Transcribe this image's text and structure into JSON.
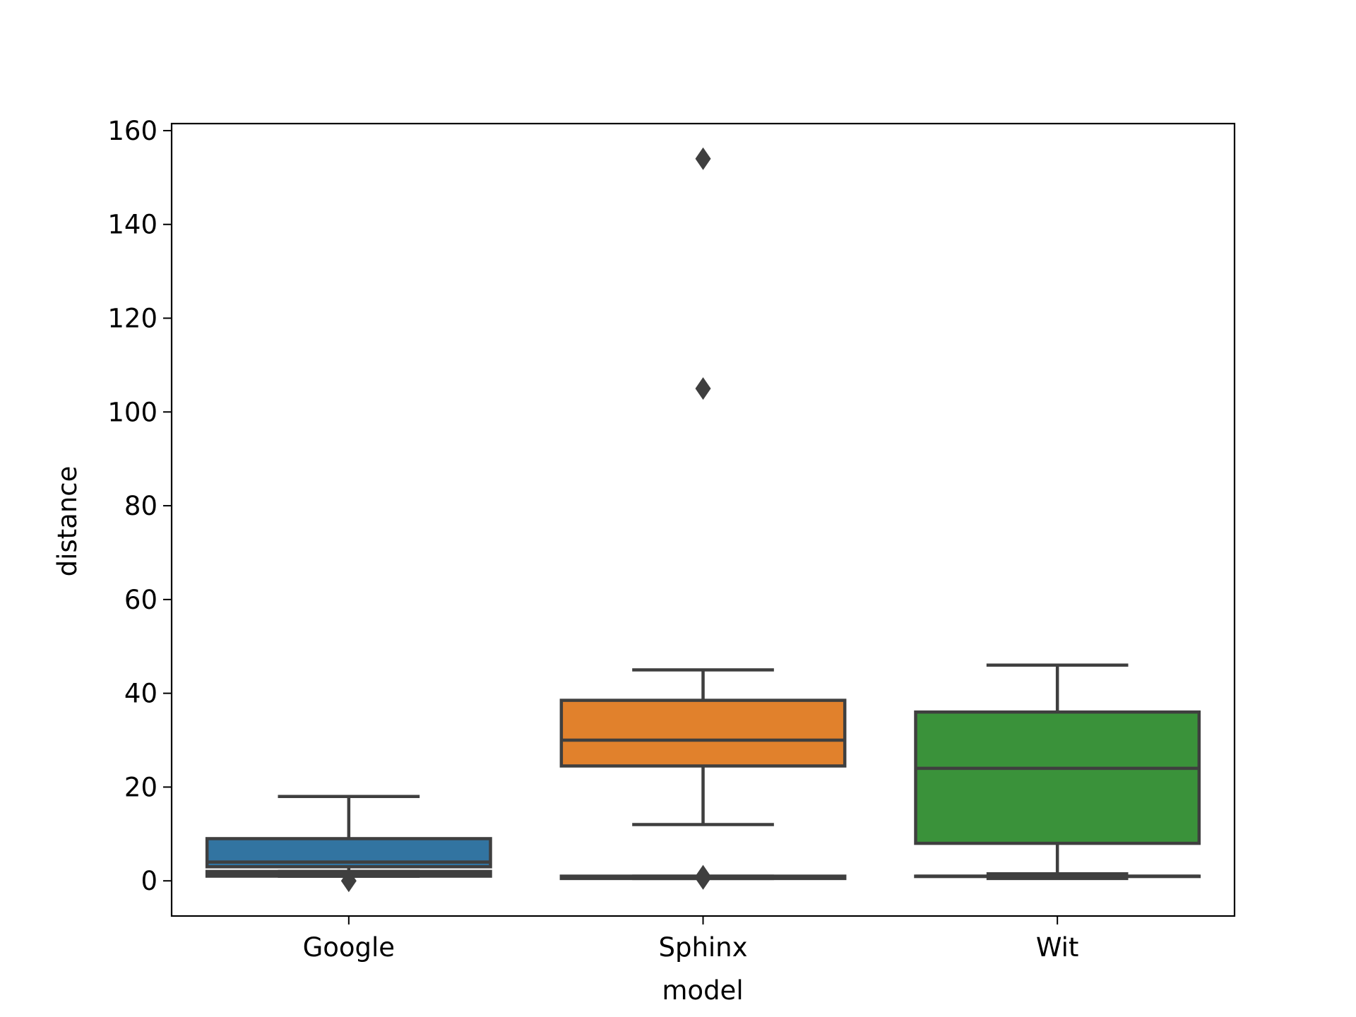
{
  "chart_data": {
    "type": "box",
    "title": "",
    "xlabel": "model",
    "ylabel": "distance",
    "ylim": [
      -7.5,
      161.5
    ],
    "yticks": [
      0,
      20,
      40,
      60,
      80,
      100,
      120,
      140,
      160
    ],
    "grid": false,
    "legend": "none",
    "categories": [
      "Google",
      "Sphinx",
      "Wit"
    ],
    "boxes": [
      {
        "category": "Google",
        "color": "#3274a1",
        "whisker_low": 1,
        "q1": 3,
        "median": 4,
        "q3": 9,
        "whisker_high": 18,
        "outliers": [
          0
        ]
      },
      {
        "category": "Sphinx",
        "color": "#e1812c",
        "whisker_low": 12,
        "q1": 24.5,
        "median": 30,
        "q3": 38.5,
        "whisker_high": 45,
        "outliers": [
          154,
          105,
          1,
          0.5
        ]
      },
      {
        "category": "Wit",
        "color": "#3a923a",
        "whisker_low": 1,
        "q1": 8,
        "median": 24,
        "q3": 36,
        "whisker_high": 46,
        "outliers": []
      }
    ],
    "overlay_boxes": [
      {
        "category": "Google",
        "whisker_low": 1,
        "q1": 1,
        "median": 1.5,
        "q3": 2,
        "whisker_high": 2
      },
      {
        "category": "Sphinx",
        "whisker_low": 0.5,
        "q1": 0.5,
        "median": 0.8,
        "q3": 1,
        "whisker_high": 1
      },
      {
        "category": "Wit",
        "whisker_low": 0.5,
        "q1": 1,
        "median": 1,
        "q3": 1,
        "whisker_high": 1.5
      }
    ],
    "edge_color": "#3f3f3f"
  }
}
